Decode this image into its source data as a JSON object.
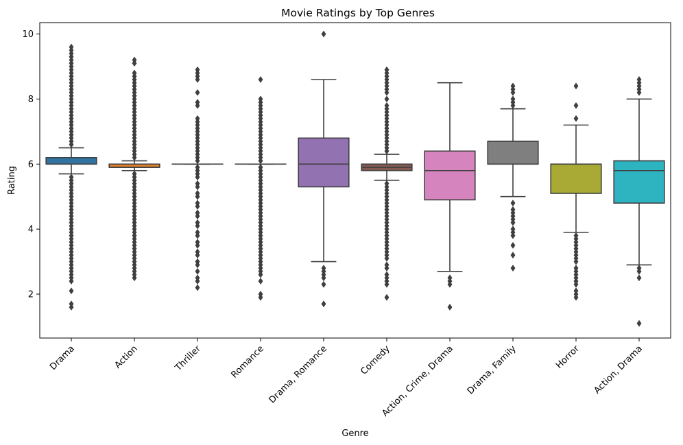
{
  "chart_data": {
    "type": "box",
    "title": "Movie Ratings by Top Genres",
    "xlabel": "Genre",
    "ylabel": "Rating",
    "ylim": [
      0.65,
      10.35
    ],
    "yticks": [
      2,
      4,
      6,
      8,
      10
    ],
    "grid": false,
    "legend": "none",
    "line_color": "#3f3f3f",
    "categories": [
      "Drama",
      "Action",
      "Thriller",
      "Romance",
      "Drama, Romance",
      "Comedy",
      "Action, Crime, Drama",
      "Drama, Family",
      "Horror",
      "Action, Drama"
    ],
    "boxes": [
      {
        "genre": "Drama",
        "color": "#3274a1",
        "q1": 6.0,
        "median": 6.0,
        "q3": 6.2,
        "whisker_low": 5.7,
        "whisker_high": 6.5,
        "outliers": [
          1.6,
          1.7,
          2.1,
          2.4,
          2.5,
          2.6,
          2.7,
          2.8,
          2.9,
          3.0,
          3.1,
          3.2,
          3.3,
          3.4,
          3.5,
          3.6,
          3.7,
          3.8,
          3.9,
          4.0,
          4.1,
          4.2,
          4.3,
          4.4,
          4.5,
          4.6,
          4.7,
          4.8,
          4.9,
          5.0,
          5.1,
          5.2,
          5.3,
          5.4,
          5.5,
          5.6,
          6.6,
          6.7,
          6.8,
          6.9,
          7.0,
          7.1,
          7.2,
          7.3,
          7.4,
          7.5,
          7.6,
          7.7,
          7.8,
          7.9,
          8.0,
          8.1,
          8.2,
          8.3,
          8.4,
          8.5,
          8.6,
          8.7,
          8.8,
          8.9,
          9.0,
          9.1,
          9.2,
          9.3,
          9.4,
          9.5,
          9.6
        ]
      },
      {
        "genre": "Action",
        "color": "#e1812c",
        "q1": 5.9,
        "median": 5.9,
        "q3": 6.0,
        "whisker_low": 5.8,
        "whisker_high": 6.1,
        "outliers": [
          2.5,
          2.6,
          2.7,
          2.8,
          2.9,
          3.0,
          3.1,
          3.2,
          3.3,
          3.4,
          3.5,
          3.6,
          3.7,
          3.8,
          3.9,
          4.0,
          4.1,
          4.2,
          4.3,
          4.4,
          4.5,
          4.6,
          4.7,
          4.8,
          4.9,
          5.0,
          5.1,
          5.2,
          5.3,
          5.4,
          5.5,
          5.6,
          5.7,
          6.2,
          6.3,
          6.4,
          6.5,
          6.6,
          6.7,
          6.8,
          6.9,
          7.0,
          7.1,
          7.2,
          7.3,
          7.4,
          7.5,
          7.6,
          7.7,
          7.8,
          7.9,
          8.0,
          8.1,
          8.2,
          8.3,
          8.4,
          8.5,
          8.6,
          8.7,
          8.8,
          9.1,
          9.2
        ]
      },
      {
        "genre": "Thriller",
        "color": "#3a923a",
        "q1": 6.0,
        "median": 6.0,
        "q3": 6.0,
        "whisker_low": 6.0,
        "whisker_high": 6.0,
        "outliers": [
          2.2,
          2.4,
          2.5,
          2.7,
          2.9,
          3.0,
          3.2,
          3.3,
          3.5,
          3.6,
          3.8,
          3.9,
          4.1,
          4.2,
          4.4,
          4.5,
          4.7,
          4.8,
          5.0,
          5.1,
          5.3,
          5.4,
          5.6,
          5.7,
          5.8,
          5.9,
          6.1,
          6.2,
          6.3,
          6.4,
          6.5,
          6.6,
          6.7,
          6.8,
          6.9,
          7.0,
          7.1,
          7.2,
          7.3,
          7.4,
          7.8,
          7.9,
          8.2,
          8.6,
          8.7,
          8.8,
          8.9
        ]
      },
      {
        "genre": "Romance",
        "color": "#c03d3e",
        "q1": 6.0,
        "median": 6.0,
        "q3": 6.0,
        "whisker_low": 6.0,
        "whisker_high": 6.0,
        "outliers": [
          1.9,
          2.0,
          2.4,
          2.6,
          2.7,
          2.8,
          2.9,
          3.0,
          3.1,
          3.2,
          3.3,
          3.4,
          3.5,
          3.6,
          3.7,
          3.8,
          3.9,
          4.0,
          4.1,
          4.2,
          4.3,
          4.4,
          4.5,
          4.6,
          4.7,
          4.8,
          4.9,
          5.0,
          5.1,
          5.2,
          5.3,
          5.4,
          5.5,
          5.6,
          5.7,
          5.8,
          5.9,
          6.1,
          6.2,
          6.3,
          6.4,
          6.5,
          6.6,
          6.7,
          6.8,
          6.9,
          7.0,
          7.1,
          7.2,
          7.3,
          7.4,
          7.5,
          7.6,
          7.7,
          7.8,
          7.9,
          8.0,
          8.6
        ]
      },
      {
        "genre": "Drama, Romance",
        "color": "#9372b2",
        "q1": 5.3,
        "median": 6.0,
        "q3": 6.8,
        "whisker_low": 3.0,
        "whisker_high": 8.6,
        "outliers": [
          1.7,
          2.3,
          2.5,
          2.6,
          2.7,
          2.8,
          10.0
        ]
      },
      {
        "genre": "Comedy",
        "color": "#845b53",
        "q1": 5.8,
        "median": 5.9,
        "q3": 6.0,
        "whisker_low": 5.5,
        "whisker_high": 6.3,
        "outliers": [
          1.9,
          2.3,
          2.4,
          2.5,
          2.6,
          2.8,
          2.9,
          3.1,
          3.2,
          3.3,
          3.4,
          3.5,
          3.6,
          3.7,
          3.8,
          3.9,
          4.0,
          4.1,
          4.2,
          4.3,
          4.4,
          4.5,
          4.6,
          4.7,
          4.8,
          4.9,
          5.0,
          5.1,
          5.2,
          5.3,
          5.4,
          6.4,
          6.5,
          6.6,
          6.7,
          6.8,
          6.9,
          7.0,
          7.1,
          7.2,
          7.3,
          7.4,
          7.5,
          7.6,
          7.7,
          7.8,
          8.0,
          8.2,
          8.3,
          8.4,
          8.5,
          8.6,
          8.7,
          8.8,
          8.9
        ]
      },
      {
        "genre": "Action, Crime, Drama",
        "color": "#d684bd",
        "q1": 4.9,
        "median": 5.8,
        "q3": 6.4,
        "whisker_low": 2.7,
        "whisker_high": 8.5,
        "outliers": [
          1.6,
          2.3,
          2.4,
          2.5
        ]
      },
      {
        "genre": "Drama, Family",
        "color": "#7f7f7f",
        "q1": 6.0,
        "median": 6.0,
        "q3": 6.7,
        "whisker_low": 5.0,
        "whisker_high": 7.7,
        "outliers": [
          2.8,
          3.2,
          3.5,
          3.8,
          3.9,
          4.0,
          4.2,
          4.3,
          4.4,
          4.5,
          4.6,
          4.8,
          7.8,
          7.9,
          8.0,
          8.2,
          8.3,
          8.4
        ]
      },
      {
        "genre": "Horror",
        "color": "#a9aa35",
        "q1": 5.1,
        "median": 6.0,
        "q3": 6.0,
        "whisker_low": 3.9,
        "whisker_high": 7.2,
        "outliers": [
          1.9,
          2.0,
          2.1,
          2.3,
          2.4,
          2.5,
          2.6,
          2.7,
          2.8,
          3.0,
          3.1,
          3.2,
          3.3,
          3.4,
          3.5,
          3.6,
          3.7,
          3.8,
          7.4,
          7.8,
          8.4
        ]
      },
      {
        "genre": "Action, Drama",
        "color": "#2eb3c1",
        "q1": 4.8,
        "median": 5.8,
        "q3": 6.1,
        "whisker_low": 2.9,
        "whisker_high": 8.0,
        "outliers": [
          1.1,
          2.5,
          2.7,
          2.8,
          8.2,
          8.3,
          8.4,
          8.5,
          8.6
        ]
      }
    ]
  }
}
